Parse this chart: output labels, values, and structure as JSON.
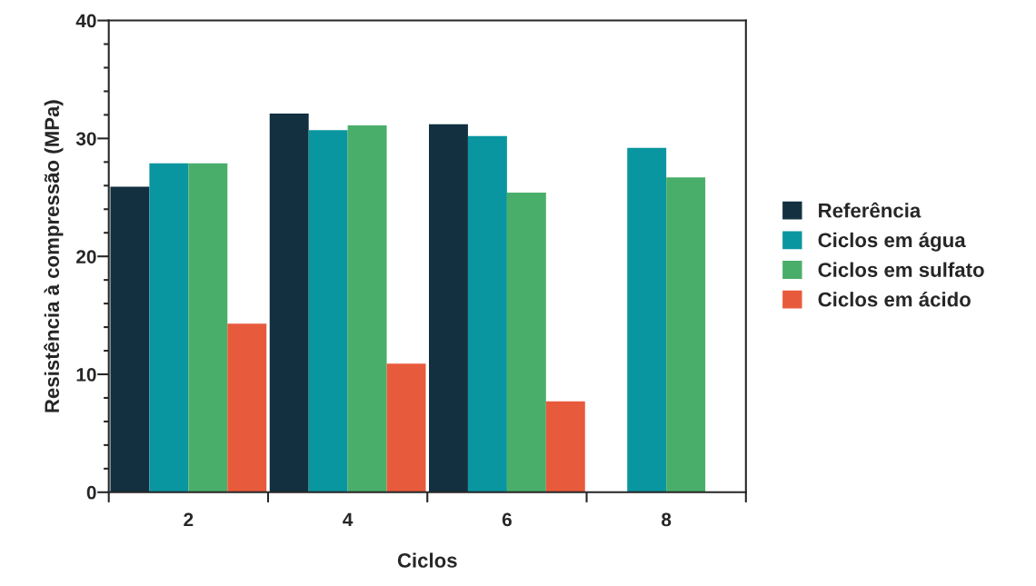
{
  "chart_data": {
    "type": "bar",
    "xlabel": "Ciclos",
    "ylabel": "Resistência à compressão (MPa)",
    "categories": [
      "2",
      "4",
      "6",
      "8"
    ],
    "series": [
      {
        "name": "Referência",
        "color": "#12303f",
        "values": [
          25.9,
          32.1,
          31.2,
          null
        ]
      },
      {
        "name": "Ciclos em água",
        "color": "#0a96a0",
        "values": [
          27.9,
          30.7,
          30.2,
          29.2
        ]
      },
      {
        "name": "Ciclos em sulfato",
        "color": "#4aae6b",
        "values": [
          27.9,
          31.1,
          25.4,
          26.7
        ]
      },
      {
        "name": "Ciclos em ácido",
        "color": "#e85a3c",
        "values": [
          14.3,
          10.9,
          7.7,
          null
        ]
      }
    ],
    "ylim": [
      0,
      40
    ],
    "yticks": [
      0,
      {
        "value": 2,
        "label": null
      },
      {
        "value": 4,
        "label": null
      },
      {
        "value": 6,
        "label": null
      },
      {
        "value": 8,
        "label": null
      },
      10,
      {
        "value": 12,
        "label": null
      },
      {
        "value": 14,
        "label": null
      },
      {
        "value": 16,
        "label": null
      },
      {
        "value": 18,
        "label": null
      },
      20,
      {
        "value": 22,
        "label": null
      },
      {
        "value": 24,
        "label": null
      },
      {
        "value": 26,
        "label": null
      },
      {
        "value": 28,
        "label": null
      },
      30,
      {
        "value": 32,
        "label": null
      },
      {
        "value": 34,
        "label": null
      },
      {
        "value": 36,
        "label": null
      },
      {
        "value": 38,
        "label": null
      },
      40
    ],
    "grid": false,
    "legend": "right"
  }
}
